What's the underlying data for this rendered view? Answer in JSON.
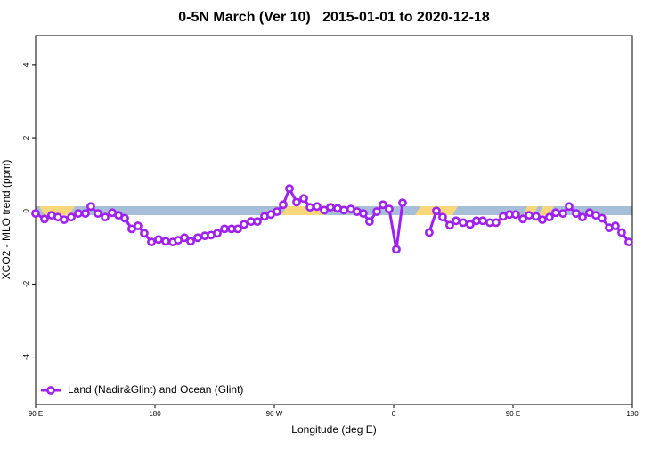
{
  "chart_data": {
    "type": "line",
    "title": "0-5N March (Ver 10)   2015-01-01 to 2020-12-18",
    "x_label": "Longitude (deg E)",
    "y_label": "XCO2 - MLO trend (ppm)",
    "xlim": [
      -270,
      180
    ],
    "xticks": [
      {
        "value": -270,
        "label": "90 E"
      },
      {
        "value": -180,
        "label": "180"
      },
      {
        "value": -90,
        "label": "90 W"
      },
      0,
      {
        "value": 90,
        "label": "90 E"
      },
      180
    ],
    "ylim": [
      -5.3,
      4.8
    ],
    "yticks": [
      -4,
      -2,
      0,
      2,
      4
    ],
    "legend": "bottom-left",
    "series": [
      {
        "name": "Land (Nadir&Glint) and Ocean (Glint)",
        "color": "#a020f0",
        "x": [
          -270.0,
          -263.3,
          -257.9,
          -253.2,
          -248.5,
          -243.1,
          -237.8,
          -232.4,
          -228.4,
          -223.0,
          -217.6,
          -212.2,
          -207.5,
          -202.8,
          -197.5,
          -192.8,
          -188.1,
          -182.7,
          -177.3,
          -171.9,
          -166.6,
          -162.5,
          -157.8,
          -153.1,
          -147.8,
          -142.4,
          -137.7,
          -133.0,
          -127.6,
          -122.2,
          -117.5,
          -112.8,
          -107.5,
          -102.8,
          -97.4,
          -92.7,
          -88.0,
          -83.3,
          -78.6,
          -73.2,
          -67.8,
          -63.1,
          -57.8,
          -52.4,
          -47.7,
          -42.3,
          -37.6,
          -32.3,
          -27.6,
          -22.9,
          -18.2,
          -12.8,
          -8.1,
          -3.4,
          2.0,
          6.7,
          16.8,
          26.8,
          32.2,
          36.9,
          42.3,
          47.0,
          52.4,
          57.7,
          62.4,
          67.1,
          72.5,
          77.2,
          82.6,
          87.3,
          92.0,
          97.4,
          102.1,
          107.4,
          112.1,
          117.5,
          122.2,
          127.6,
          132.3,
          137.7,
          142.4,
          147.7,
          152.4,
          157.1,
          162.5,
          167.2,
          171.9,
          177.3
        ],
        "values": [
          -0.07,
          -0.22,
          -0.12,
          -0.17,
          -0.24,
          -0.17,
          -0.07,
          -0.07,
          0.12,
          -0.07,
          -0.17,
          -0.05,
          -0.12,
          -0.2,
          -0.49,
          -0.41,
          -0.61,
          -0.85,
          -0.78,
          -0.83,
          -0.85,
          -0.8,
          -0.73,
          -0.83,
          -0.73,
          -0.68,
          -0.66,
          -0.61,
          -0.49,
          -0.49,
          -0.49,
          -0.37,
          -0.29,
          -0.29,
          -0.15,
          -0.1,
          -0.02,
          0.17,
          0.61,
          0.24,
          0.34,
          0.1,
          0.12,
          0.02,
          0.1,
          0.07,
          0.02,
          0.05,
          -0.02,
          -0.07,
          -0.29,
          -0.02,
          0.17,
          0.05,
          -1.05,
          0.22,
          null,
          -0.59,
          0.0,
          -0.17,
          -0.39,
          -0.27,
          -0.32,
          -0.37,
          -0.27,
          -0.27,
          -0.32,
          -0.32,
          -0.15,
          -0.1,
          -0.1,
          -0.22,
          -0.12,
          -0.15,
          -0.24,
          -0.17,
          -0.05,
          -0.07,
          0.12,
          -0.07,
          -0.17,
          -0.05,
          -0.12,
          -0.2,
          -0.46,
          -0.41,
          -0.59,
          -0.85
        ]
      }
    ]
  }
}
